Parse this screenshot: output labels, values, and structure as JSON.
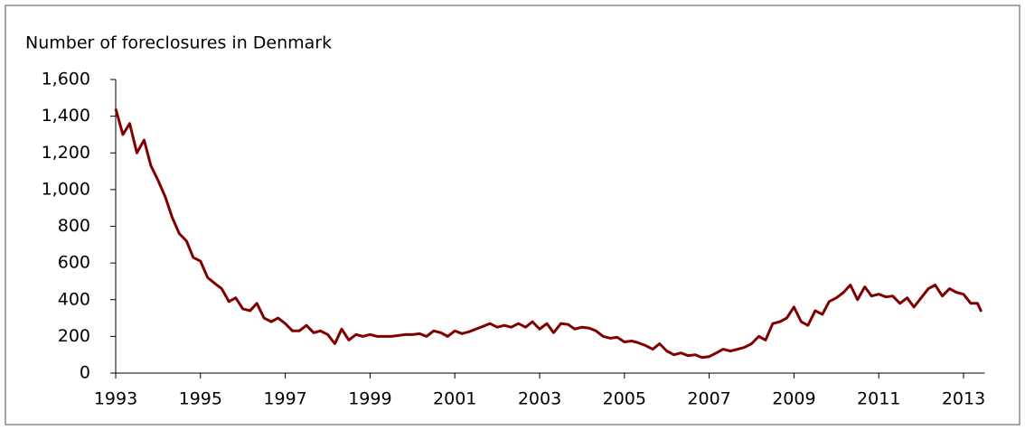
{
  "chart_data": {
    "type": "line",
    "title": "Number of foreclosures in Denmark",
    "x": [
      1993,
      1993.17,
      1993.33,
      1993.5,
      1993.67,
      1993.83,
      1994,
      1994.17,
      1994.33,
      1994.5,
      1994.67,
      1994.83,
      1995,
      1995.17,
      1995.33,
      1995.5,
      1995.67,
      1995.83,
      1996,
      1996.17,
      1996.33,
      1996.5,
      1996.67,
      1996.83,
      1997,
      1997.17,
      1997.33,
      1997.5,
      1997.67,
      1997.83,
      1998,
      1998.17,
      1998.33,
      1998.5,
      1998.67,
      1998.83,
      1999,
      1999.17,
      1999.33,
      1999.5,
      1999.67,
      1999.83,
      2000,
      2000.17,
      2000.33,
      2000.5,
      2000.67,
      2000.83,
      2001,
      2001.17,
      2001.33,
      2001.5,
      2001.67,
      2001.83,
      2002,
      2002.17,
      2002.33,
      2002.5,
      2002.67,
      2002.83,
      2003,
      2003.17,
      2003.33,
      2003.5,
      2003.67,
      2003.83,
      2004,
      2004.17,
      2004.33,
      2004.5,
      2004.67,
      2004.83,
      2005,
      2005.17,
      2005.33,
      2005.5,
      2005.67,
      2005.83,
      2006,
      2006.17,
      2006.33,
      2006.5,
      2006.67,
      2006.83,
      2007,
      2007.17,
      2007.33,
      2007.5,
      2007.67,
      2007.83,
      2008,
      2008.17,
      2008.33,
      2008.5,
      2008.67,
      2008.83,
      2009,
      2009.17,
      2009.33,
      2009.5,
      2009.67,
      2009.83,
      2010,
      2010.17,
      2010.33,
      2010.5,
      2010.67,
      2010.83,
      2011,
      2011.17,
      2011.33,
      2011.5,
      2011.67,
      2011.83,
      2012,
      2012.17,
      2012.33,
      2012.5,
      2012.67,
      2012.83,
      2013,
      2013.17,
      2013.33,
      2013.42
    ],
    "series": [
      {
        "name": "Foreclosures",
        "color": "#800000",
        "values": [
          1440,
          1300,
          1360,
          1200,
          1270,
          1130,
          1050,
          960,
          850,
          760,
          720,
          630,
          610,
          520,
          490,
          460,
          390,
          410,
          350,
          340,
          380,
          300,
          280,
          300,
          270,
          230,
          230,
          260,
          220,
          230,
          210,
          160,
          240,
          180,
          210,
          200,
          210,
          200,
          200,
          200,
          205,
          210,
          210,
          215,
          200,
          230,
          220,
          200,
          230,
          215,
          225,
          240,
          255,
          270,
          250,
          260,
          250,
          270,
          250,
          280,
          240,
          270,
          220,
          270,
          265,
          240,
          250,
          245,
          230,
          200,
          190,
          195,
          170,
          175,
          165,
          150,
          130,
          160,
          120,
          100,
          110,
          95,
          100,
          85,
          90,
          110,
          130,
          120,
          130,
          140,
          160,
          200,
          180,
          270,
          280,
          300,
          360,
          280,
          260,
          340,
          320,
          390,
          410,
          440,
          480,
          400,
          470,
          420,
          430,
          415,
          420,
          380,
          410,
          360,
          410,
          460,
          480,
          420,
          460,
          440,
          430,
          380,
          380,
          335
        ]
      }
    ],
    "xlim": [
      1993,
      2013.5
    ],
    "xticks": [
      1993,
      1995,
      1997,
      1999,
      2001,
      2003,
      2005,
      2007,
      2009,
      2011,
      2013
    ],
    "ylim": [
      0,
      1600
    ],
    "yticks": [
      0,
      200,
      400,
      600,
      800,
      {
        "value": 1000,
        "label": "1,000"
      },
      {
        "value": 1200,
        "label": "1,200"
      },
      {
        "value": 1400,
        "label": "1,400"
      },
      {
        "value": 1600,
        "label": "1,600"
      }
    ],
    "grid": false
  }
}
